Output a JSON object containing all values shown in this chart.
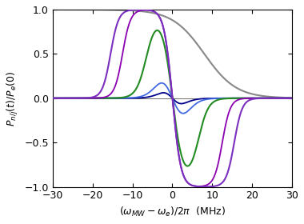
{
  "xlim": [
    -30,
    30
  ],
  "ylim": [
    -1.0,
    1.0
  ],
  "xlabel": "($\\omega_{MW}$-$\\omega_e$)/2$\\pi$  (MHz)",
  "ylabel": "$P_{n/j}(t)/P_e(0)$",
  "background_color": "#ffffff",
  "electron_color": "#888888",
  "yticks": [
    -1.0,
    -0.5,
    0.0,
    0.5,
    1.0
  ],
  "xticks": [
    -30,
    -20,
    -10,
    0,
    10,
    20,
    30
  ],
  "nuclear_params": [
    {
      "wn": 1.5,
      "color": "#00008B",
      "lw": 1.3
    },
    {
      "wn": 3.0,
      "color": "#4169E1",
      "lw": 1.3
    },
    {
      "wn": 6.0,
      "color": "#228B22",
      "lw": 1.5
    },
    {
      "wn": 12.0,
      "color": "#8B00B0",
      "lw": 1.3
    },
    {
      "wn": 15.0,
      "color": "#7B2FBE",
      "lw": 1.5
    }
  ]
}
